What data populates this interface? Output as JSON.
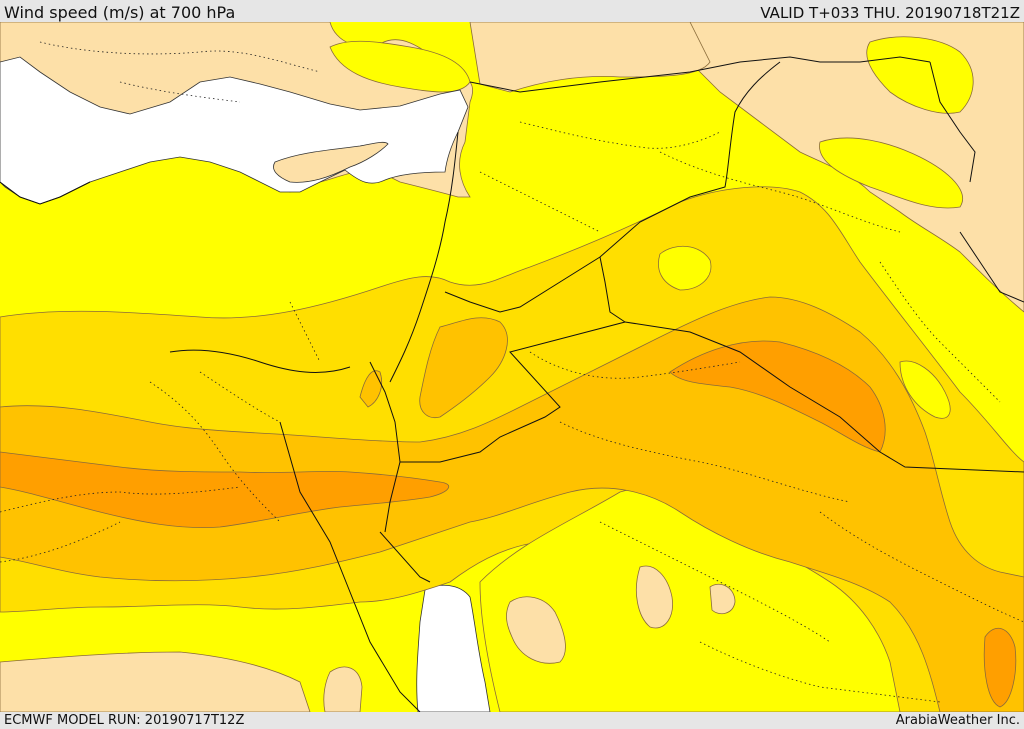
{
  "header": {
    "title": "Wind speed (m/s) at 700 hPa",
    "valid": "VALID T+033 THU. 20190718T21Z"
  },
  "footer": {
    "model_run": "ECMWF MODEL RUN: 20190717T12Z",
    "credit": "ArabiaWeather Inc."
  },
  "colors": {
    "land_light": "#fde0a8",
    "sea": "#ffffff",
    "band_1": "#ffff00",
    "band_2": "#ffdf00",
    "band_3": "#ffc200",
    "band_4": "#ff9f00",
    "contour": "#8a6b3a",
    "border": "#111111"
  }
}
